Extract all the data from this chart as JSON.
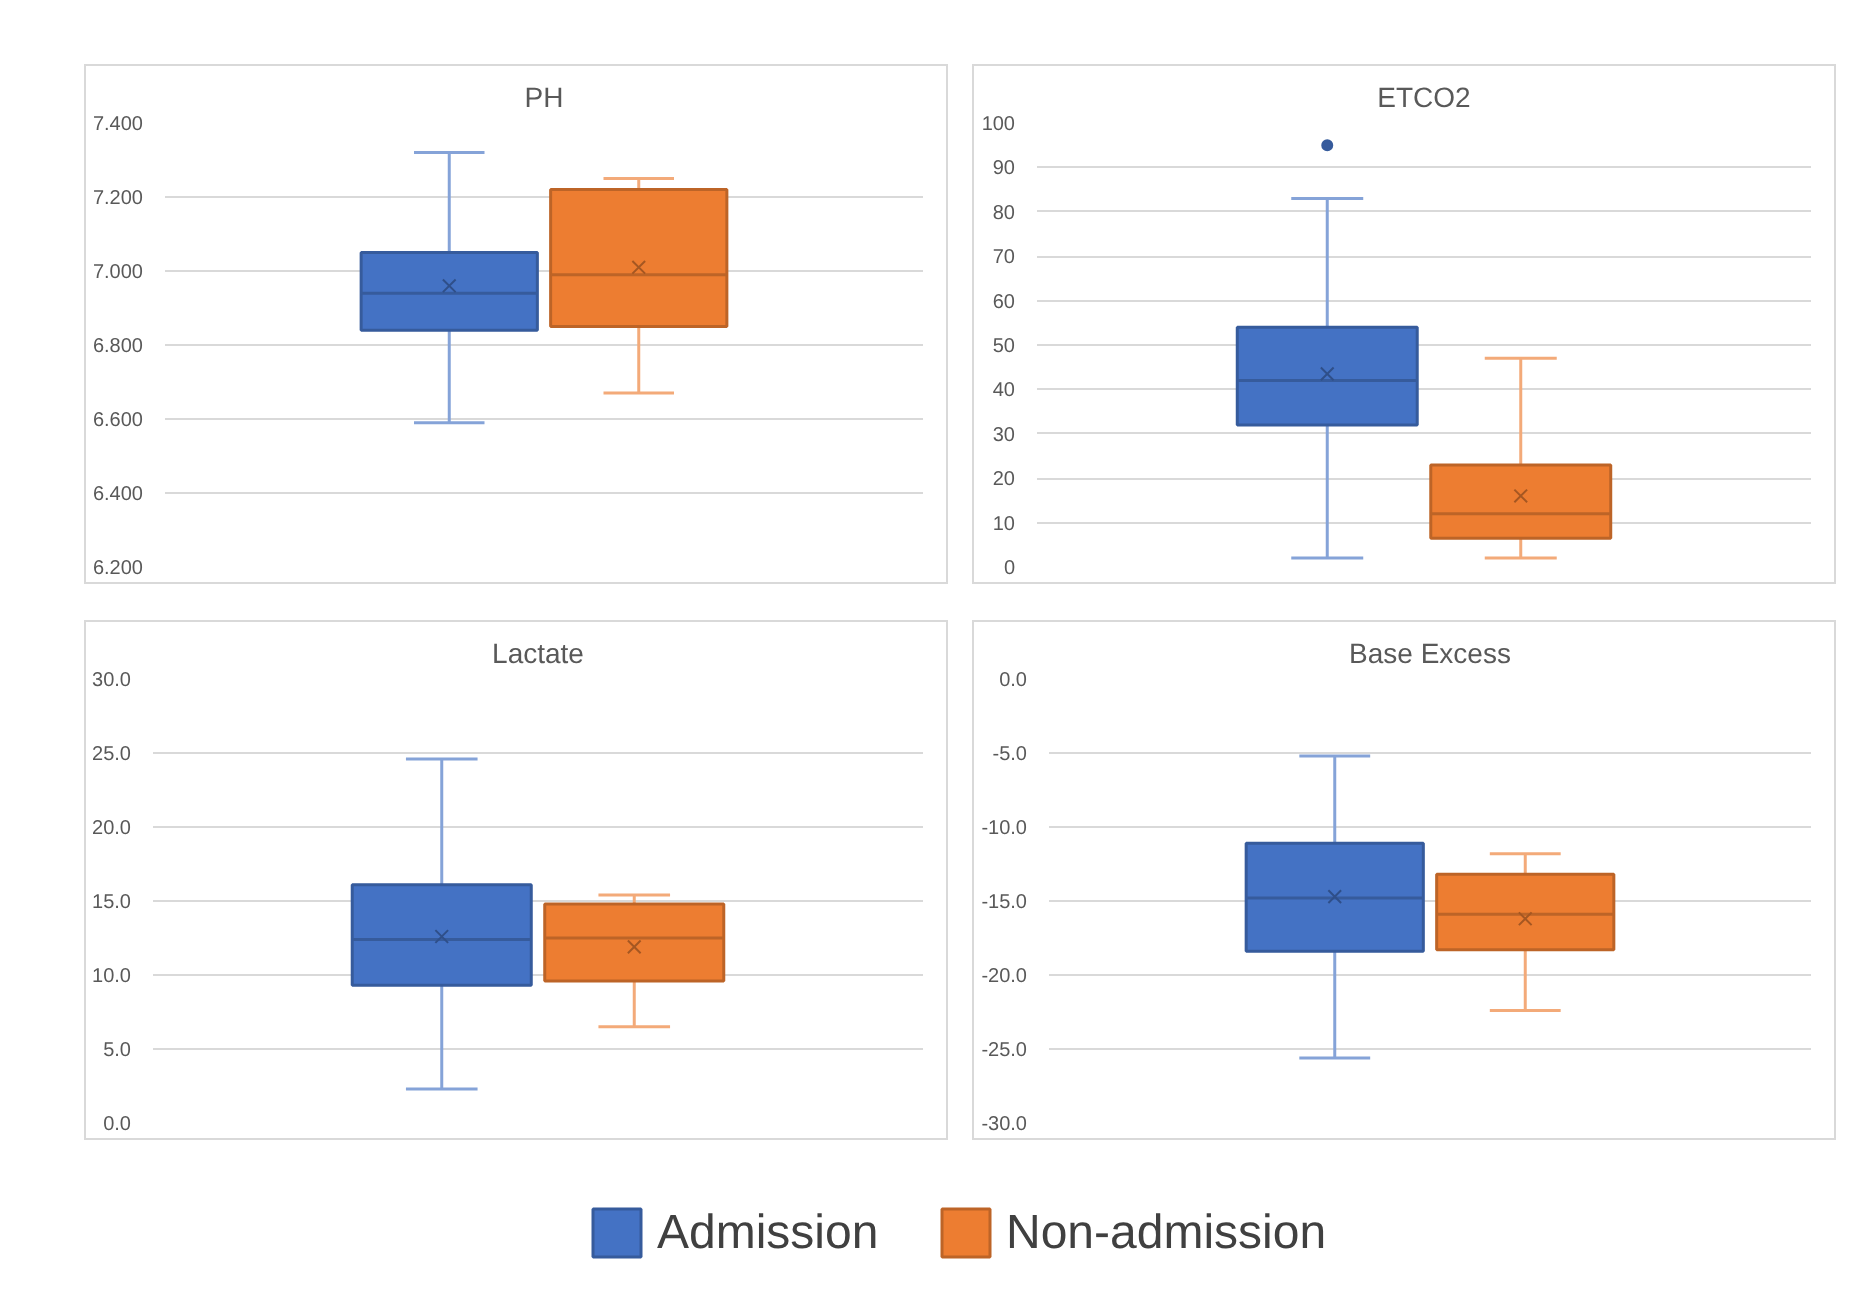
{
  "chart_data": [
    {
      "type": "box",
      "title": "PH",
      "categories": [
        null
      ],
      "ylim": [
        6.2,
        7.4
      ],
      "yticks": [
        {
          "value": 6.2,
          "label": "6.200"
        },
        {
          "value": 6.4,
          "label": "6.400"
        },
        {
          "value": 6.6,
          "label": "6.600"
        },
        {
          "value": 6.8,
          "label": "6.800"
        },
        {
          "value": 7.0,
          "label": "7.000"
        },
        {
          "value": 7.2,
          "label": "7.200"
        },
        {
          "value": 7.4,
          "label": "7.400"
        }
      ],
      "grid": "y",
      "legend": "bottom",
      "series": [
        {
          "name": "Admission",
          "color": "#4472c4",
          "boxes": [
            {
              "low": 6.59,
              "q1": 6.84,
              "median": 6.94,
              "q3": 7.05,
              "high": 7.32,
              "mean": 6.96
            }
          ]
        },
        {
          "name": "Non-admission",
          "color": "#ed7d31",
          "boxes": [
            {
              "low": 6.67,
              "q1": 6.85,
              "median": 6.99,
              "q3": 7.22,
              "high": 7.25,
              "mean": 7.01
            }
          ]
        }
      ]
    },
    {
      "type": "box",
      "title": "ETCO2",
      "categories": [
        null
      ],
      "ylim": [
        0,
        100
      ],
      "yticks": [
        0,
        10,
        20,
        30,
        40,
        50,
        60,
        70,
        80,
        90,
        100
      ],
      "grid": "y",
      "series": [
        {
          "color": "#4472c4",
          "boxes": [
            {
              "low": 2,
              "q1": 32,
              "median": 42,
              "q3": 54,
              "high": 83,
              "mean": 43.5,
              "outliers": [
                95
              ]
            }
          ]
        },
        {
          "color": "#ed7d31",
          "boxes": [
            {
              "low": 2,
              "q1": 6.5,
              "median": 12,
              "q3": 23,
              "high": 47,
              "mean": 16
            }
          ]
        }
      ]
    },
    {
      "type": "box",
      "title": "Lactate",
      "categories": [
        null
      ],
      "ylim": [
        0,
        30
      ],
      "yticks": [
        {
          "value": 0,
          "label": "0.0"
        },
        {
          "value": 5,
          "label": "5.0"
        },
        {
          "value": 10,
          "label": "10.0"
        },
        {
          "value": 15,
          "label": "15.0"
        },
        {
          "value": 20,
          "label": "20.0"
        },
        {
          "value": 25,
          "label": "25.0"
        },
        {
          "value": 30,
          "label": "30.0"
        }
      ],
      "grid": "y",
      "series": [
        {
          "color": "#4472c4",
          "boxes": [
            {
              "low": 2.3,
              "q1": 9.3,
              "median": 12.4,
              "q3": 16.1,
              "high": 24.6,
              "mean": 12.6
            }
          ]
        },
        {
          "color": "#ed7d31",
          "boxes": [
            {
              "low": 6.5,
              "q1": 9.6,
              "median": 12.5,
              "q3": 14.8,
              "high": 15.4,
              "mean": 11.9
            }
          ]
        }
      ]
    },
    {
      "type": "box",
      "title": "Base Excess",
      "categories": [
        null
      ],
      "ylim": [
        -30,
        0
      ],
      "yticks": [
        {
          "value": -30,
          "label": "-30.0"
        },
        {
          "value": -25,
          "label": "-25.0"
        },
        {
          "value": -20,
          "label": "-20.0"
        },
        {
          "value": -15,
          "label": "-15.0"
        },
        {
          "value": -10,
          "label": "-10.0"
        },
        {
          "value": -5,
          "label": "-5.0"
        },
        {
          "value": 0,
          "label": "0.0"
        }
      ],
      "grid": "y",
      "series": [
        {
          "color": "#4472c4",
          "boxes": [
            {
              "low": -25.6,
              "q1": -18.4,
              "median": -14.8,
              "q3": -11.1,
              "high": -5.2,
              "mean": -14.7
            }
          ]
        },
        {
          "color": "#ed7d31",
          "boxes": [
            {
              "low": -22.4,
              "q1": -18.3,
              "median": -15.9,
              "q3": -13.2,
              "high": -11.8,
              "mean": -16.2
            }
          ]
        }
      ]
    }
  ]
}
